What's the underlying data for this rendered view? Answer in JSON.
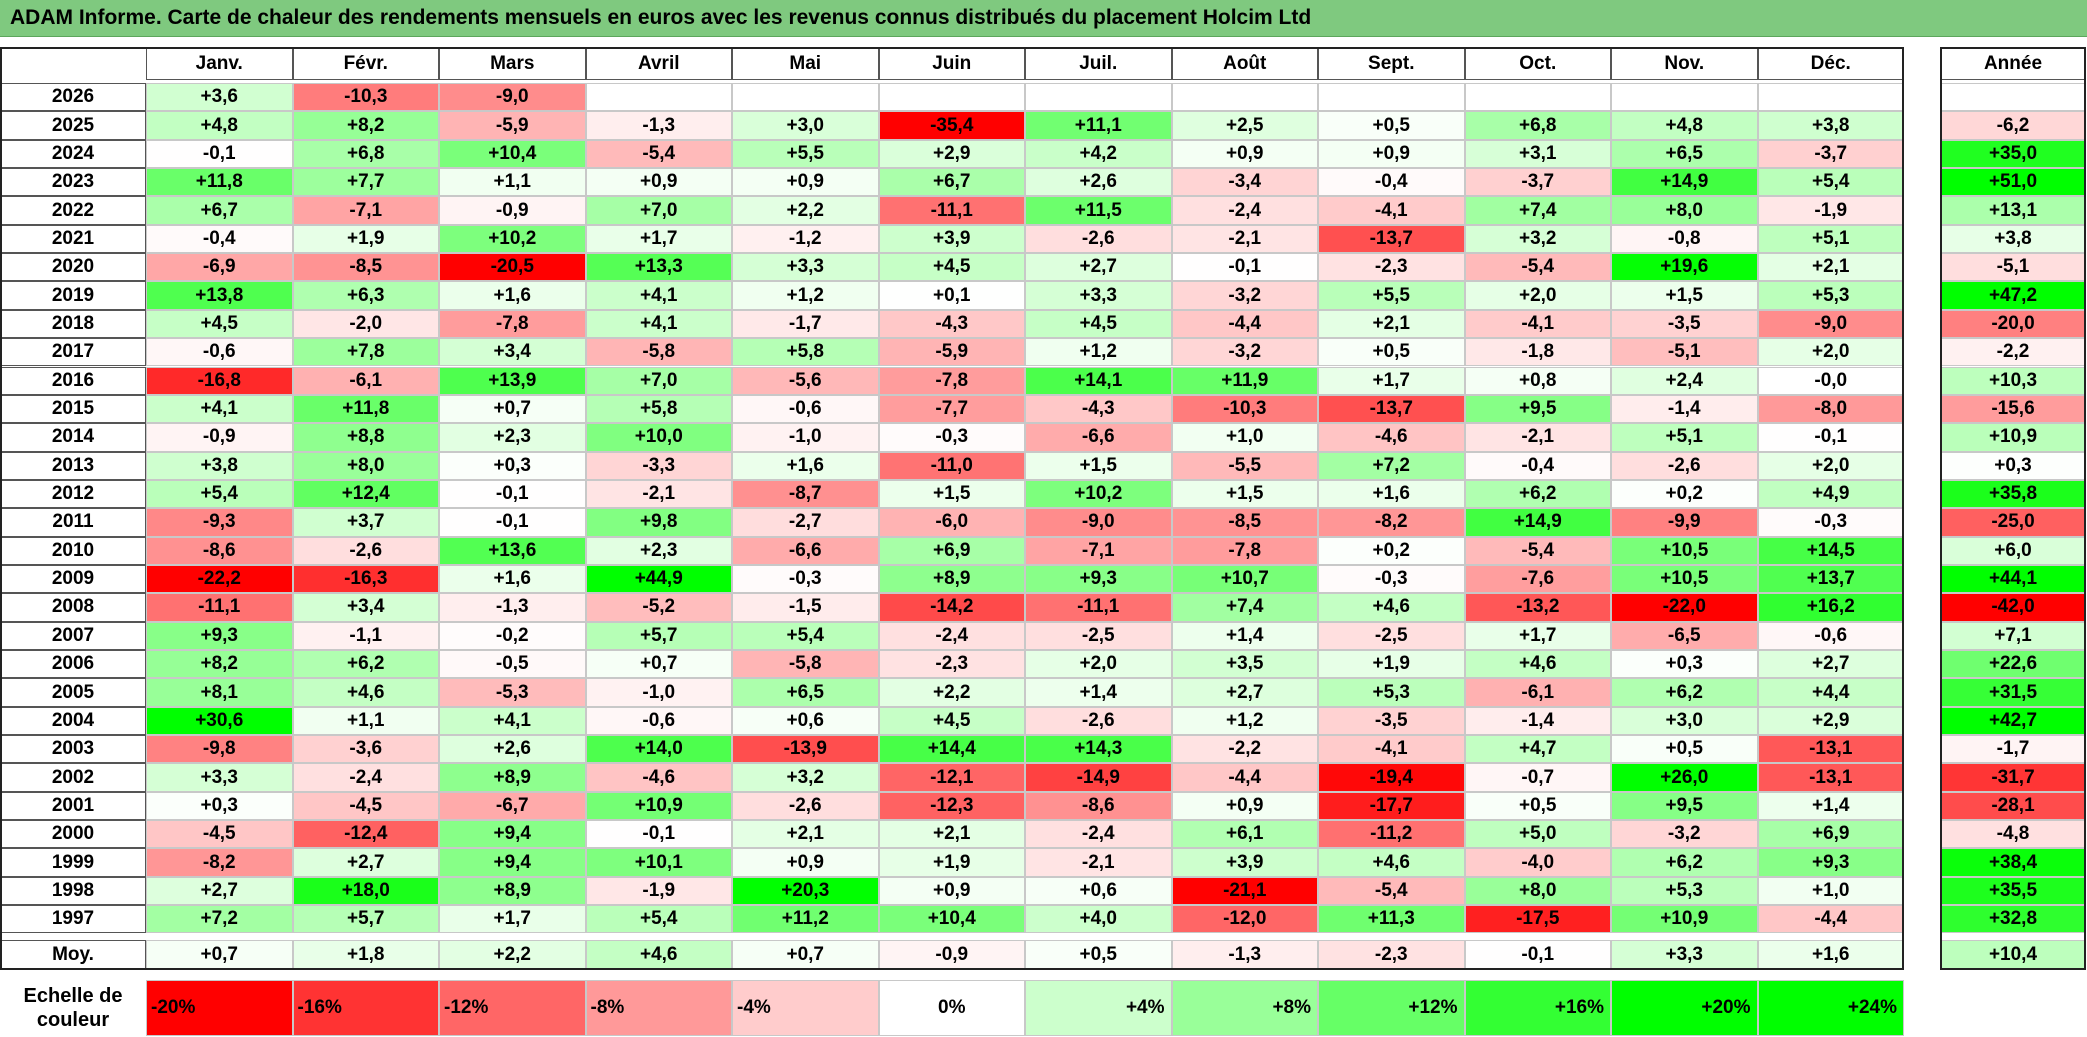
{
  "title": "ADAM Informe. Carte de chaleur des rendements mensuels en euros avec les revenus connus distribués du placement Holcim Ltd",
  "colors": {
    "title_bar": "#7fc97f",
    "negative_max": "#ff0000",
    "positive_max": "#00ff00",
    "neutral": "#ffffff"
  },
  "chart_data": {
    "type": "heatmap",
    "title": "ADAM Informe. Carte de chaleur des rendements mensuels en euros avec les revenus connus distribués du placement Holcim Ltd",
    "months": [
      "Janv.",
      "Févr.",
      "Mars",
      "Avril",
      "Mai",
      "Juin",
      "Juil.",
      "Août",
      "Sept.",
      "Oct.",
      "Nov.",
      "Déc."
    ],
    "year_header": "Année",
    "rows": [
      {
        "year": "2026",
        "values": [
          "+3,6",
          "-10,3",
          "-9,0",
          "",
          "",
          "",
          "",
          "",
          "",
          "",
          "",
          ""
        ],
        "annual": ""
      },
      {
        "year": "2025",
        "values": [
          "+4,8",
          "+8,2",
          "-5,9",
          "-1,3",
          "+3,0",
          "-35,4",
          "+11,1",
          "+2,5",
          "+0,5",
          "+6,8",
          "+4,8",
          "+3,8"
        ],
        "annual": "-6,2"
      },
      {
        "year": "2024",
        "values": [
          "-0,1",
          "+6,8",
          "+10,4",
          "-5,4",
          "+5,5",
          "+2,9",
          "+4,2",
          "+0,9",
          "+0,9",
          "+3,1",
          "+6,5",
          "-3,7"
        ],
        "annual": "+35,0"
      },
      {
        "year": "2023",
        "values": [
          "+11,8",
          "+7,7",
          "+1,1",
          "+0,9",
          "+0,9",
          "+6,7",
          "+2,6",
          "-3,4",
          "-0,4",
          "-3,7",
          "+14,9",
          "+5,4"
        ],
        "annual": "+51,0"
      },
      {
        "year": "2022",
        "values": [
          "+6,7",
          "-7,1",
          "-0,9",
          "+7,0",
          "+2,2",
          "-11,1",
          "+11,5",
          "-2,4",
          "-4,1",
          "+7,4",
          "+8,0",
          "-1,9"
        ],
        "annual": "+13,1"
      },
      {
        "year": "2021",
        "values": [
          "-0,4",
          "+1,9",
          "+10,2",
          "+1,7",
          "-1,2",
          "+3,9",
          "-2,6",
          "-2,1",
          "-13,7",
          "+3,2",
          "-0,8",
          "+5,1"
        ],
        "annual": "+3,8"
      },
      {
        "year": "2020",
        "values": [
          "-6,9",
          "-8,5",
          "-20,5",
          "+13,3",
          "+3,3",
          "+4,5",
          "+2,7",
          "-0,1",
          "-2,3",
          "-5,4",
          "+19,6",
          "+2,1"
        ],
        "annual": "-5,1"
      },
      {
        "year": "2019",
        "values": [
          "+13,8",
          "+6,3",
          "+1,6",
          "+4,1",
          "+1,2",
          "+0,1",
          "+3,3",
          "-3,2",
          "+5,5",
          "+2,0",
          "+1,5",
          "+5,3"
        ],
        "annual": "+47,2"
      },
      {
        "year": "2018",
        "values": [
          "+4,5",
          "-2,0",
          "-7,8",
          "+4,1",
          "-1,7",
          "-4,3",
          "+4,5",
          "-4,4",
          "+2,1",
          "-4,1",
          "-3,5",
          "-9,0"
        ],
        "annual": "-20,0"
      },
      {
        "year": "2017",
        "values": [
          "-0,6",
          "+7,8",
          "+3,4",
          "-5,8",
          "+5,8",
          "-5,9",
          "+1,2",
          "-3,2",
          "+0,5",
          "-1,8",
          "-5,1",
          "+2,0"
        ],
        "annual": "-2,2"
      },
      {
        "year": "2016",
        "values": [
          "-16,8",
          "-6,1",
          "+13,9",
          "+7,0",
          "-5,6",
          "-7,8",
          "+14,1",
          "+11,9",
          "+1,7",
          "+0,8",
          "+2,4",
          "-0,0"
        ],
        "annual": "+10,3"
      },
      {
        "year": "2015",
        "values": [
          "+4,1",
          "+11,8",
          "+0,7",
          "+5,8",
          "-0,6",
          "-7,7",
          "-4,3",
          "-10,3",
          "-13,7",
          "+9,5",
          "-1,4",
          "-8,0"
        ],
        "annual": "-15,6"
      },
      {
        "year": "2014",
        "values": [
          "-0,9",
          "+8,8",
          "+2,3",
          "+10,0",
          "-1,0",
          "-0,3",
          "-6,6",
          "+1,0",
          "-4,6",
          "-2,1",
          "+5,1",
          "-0,1"
        ],
        "annual": "+10,9"
      },
      {
        "year": "2013",
        "values": [
          "+3,8",
          "+8,0",
          "+0,3",
          "-3,3",
          "+1,6",
          "-11,0",
          "+1,5",
          "-5,5",
          "+7,2",
          "-0,4",
          "-2,6",
          "+2,0"
        ],
        "annual": "+0,3"
      },
      {
        "year": "2012",
        "values": [
          "+5,4",
          "+12,4",
          "-0,1",
          "-2,1",
          "-8,7",
          "+1,5",
          "+10,2",
          "+1,5",
          "+1,6",
          "+6,2",
          "+0,2",
          "+4,9"
        ],
        "annual": "+35,8"
      },
      {
        "year": "2011",
        "values": [
          "-9,3",
          "+3,7",
          "-0,1",
          "+9,8",
          "-2,7",
          "-6,0",
          "-9,0",
          "-8,5",
          "-8,2",
          "+14,9",
          "-9,9",
          "-0,3"
        ],
        "annual": "-25,0"
      },
      {
        "year": "2010",
        "values": [
          "-8,6",
          "-2,6",
          "+13,6",
          "+2,3",
          "-6,6",
          "+6,9",
          "-7,1",
          "-7,8",
          "+0,2",
          "-5,4",
          "+10,5",
          "+14,5"
        ],
        "annual": "+6,0"
      },
      {
        "year": "2009",
        "values": [
          "-22,2",
          "-16,3",
          "+1,6",
          "+44,9",
          "-0,3",
          "+8,9",
          "+9,3",
          "+10,7",
          "-0,3",
          "-7,6",
          "+10,5",
          "+13,7"
        ],
        "annual": "+44,1"
      },
      {
        "year": "2008",
        "values": [
          "-11,1",
          "+3,4",
          "-1,3",
          "-5,2",
          "-1,5",
          "-14,2",
          "-11,1",
          "+7,4",
          "+4,6",
          "-13,2",
          "-22,0",
          "+16,2"
        ],
        "annual": "-42,0"
      },
      {
        "year": "2007",
        "values": [
          "+9,3",
          "-1,1",
          "-0,2",
          "+5,7",
          "+5,4",
          "-2,4",
          "-2,5",
          "+1,4",
          "-2,5",
          "+1,7",
          "-6,5",
          "-0,6"
        ],
        "annual": "+7,1"
      },
      {
        "year": "2006",
        "values": [
          "+8,2",
          "+6,2",
          "-0,5",
          "+0,7",
          "-5,8",
          "-2,3",
          "+2,0",
          "+3,5",
          "+1,9",
          "+4,6",
          "+0,3",
          "+2,7"
        ],
        "annual": "+22,6"
      },
      {
        "year": "2005",
        "values": [
          "+8,1",
          "+4,6",
          "-5,3",
          "-1,0",
          "+6,5",
          "+2,2",
          "+1,4",
          "+2,7",
          "+5,3",
          "-6,1",
          "+6,2",
          "+4,4"
        ],
        "annual": "+31,5"
      },
      {
        "year": "2004",
        "values": [
          "+30,6",
          "+1,1",
          "+4,1",
          "-0,6",
          "+0,6",
          "+4,5",
          "-2,6",
          "+1,2",
          "-3,5",
          "-1,4",
          "+3,0",
          "+2,9"
        ],
        "annual": "+42,7"
      },
      {
        "year": "2003",
        "values": [
          "-9,8",
          "-3,6",
          "+2,6",
          "+14,0",
          "-13,9",
          "+14,4",
          "+14,3",
          "-2,2",
          "-4,1",
          "+4,7",
          "+0,5",
          "-13,1"
        ],
        "annual": "-1,7"
      },
      {
        "year": "2002",
        "values": [
          "+3,3",
          "-2,4",
          "+8,9",
          "-4,6",
          "+3,2",
          "-12,1",
          "-14,9",
          "-4,4",
          "-19,4",
          "-0,7",
          "+26,0",
          "-13,1"
        ],
        "annual": "-31,7"
      },
      {
        "year": "2001",
        "values": [
          "+0,3",
          "-4,5",
          "-6,7",
          "+10,9",
          "-2,6",
          "-12,3",
          "-8,6",
          "+0,9",
          "-17,7",
          "+0,5",
          "+9,5",
          "+1,4"
        ],
        "annual": "-28,1"
      },
      {
        "year": "2000",
        "values": [
          "-4,5",
          "-12,4",
          "+9,4",
          "-0,1",
          "+2,1",
          "+2,1",
          "-2,4",
          "+6,1",
          "-11,2",
          "+5,0",
          "-3,2",
          "+6,9"
        ],
        "annual": "-4,8"
      },
      {
        "year": "1999",
        "values": [
          "-8,2",
          "+2,7",
          "+9,4",
          "+10,1",
          "+0,9",
          "+1,9",
          "-2,1",
          "+3,9",
          "+4,6",
          "-4,0",
          "+6,2",
          "+9,3"
        ],
        "annual": "+38,4"
      },
      {
        "year": "1998",
        "values": [
          "+2,7",
          "+18,0",
          "+8,9",
          "-1,9",
          "+20,3",
          "+0,9",
          "+0,6",
          "-21,1",
          "-5,4",
          "+8,0",
          "+5,3",
          "+1,0"
        ],
        "annual": "+35,5"
      },
      {
        "year": "1997",
        "values": [
          "+7,2",
          "+5,7",
          "+1,7",
          "+5,4",
          "+11,2",
          "+10,4",
          "+4,0",
          "-12,0",
          "+11,3",
          "-17,5",
          "+10,9",
          "-4,4"
        ],
        "annual": "+32,8"
      }
    ],
    "average": {
      "label": "Moy.",
      "values": [
        "+0,7",
        "+1,8",
        "+2,2",
        "+4,6",
        "+0,7",
        "-0,9",
        "+0,5",
        "-1,3",
        "-2,3",
        "-0,1",
        "+3,3",
        "+1,6"
      ],
      "annual": "+10,4"
    },
    "scale": {
      "label": "Echelle de couleur",
      "stops": [
        "-20%",
        "-16%",
        "-12%",
        "-8%",
        "-4%",
        "0%",
        "+4%",
        "+8%",
        "+12%",
        "+16%",
        "+20%",
        "+24%"
      ]
    }
  }
}
